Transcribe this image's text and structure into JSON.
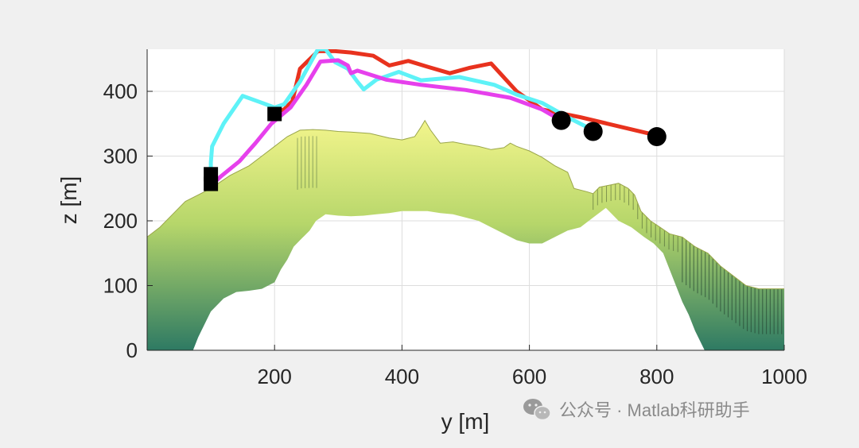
{
  "chart_data": {
    "type": "line",
    "xlabel": "y [m]",
    "ylabel": "z [m]",
    "xlim": [
      0,
      1000
    ],
    "ylim": [
      0,
      465
    ],
    "x_ticks": [
      200,
      400,
      600,
      800,
      1000
    ],
    "y_ticks": [
      0,
      100,
      200,
      300,
      400
    ],
    "grid": true,
    "colors": {
      "figure_bg": "#f0f0f0",
      "axes_bg": "#ffffff",
      "grid": "#dddddd",
      "red": "#e8321e",
      "cyan": "#5ef2f7",
      "magenta": "#e640ec",
      "markers": "#000000",
      "terrain_top": "#f3f58c",
      "terrain_mid": "#b6d66a",
      "terrain_bottom": "#2e7a63"
    },
    "series": [
      {
        "color": "red",
        "points": [
          [
            200,
            368
          ],
          [
            215,
            372
          ],
          [
            228,
            385
          ],
          [
            240,
            435
          ],
          [
            268,
            462
          ],
          [
            295,
            462
          ],
          [
            320,
            460
          ],
          [
            355,
            455
          ],
          [
            380,
            440
          ],
          [
            410,
            447
          ],
          [
            440,
            438
          ],
          [
            475,
            428
          ],
          [
            505,
            436
          ],
          [
            540,
            443
          ],
          [
            580,
            400
          ],
          [
            620,
            372
          ],
          [
            680,
            360
          ],
          [
            800,
            332
          ]
        ]
      },
      {
        "color": "cyan",
        "points": [
          [
            100,
            270
          ],
          [
            100,
            290
          ],
          [
            102,
            315
          ],
          [
            120,
            350
          ],
          [
            150,
            393
          ],
          [
            178,
            383
          ],
          [
            200,
            375
          ],
          [
            215,
            380
          ],
          [
            240,
            415
          ],
          [
            268,
            465
          ],
          [
            280,
            465
          ],
          [
            295,
            445
          ],
          [
            315,
            435
          ],
          [
            330,
            415
          ],
          [
            340,
            403
          ],
          [
            360,
            418
          ],
          [
            395,
            430
          ],
          [
            430,
            417
          ],
          [
            490,
            422
          ],
          [
            545,
            410
          ],
          [
            580,
            395
          ],
          [
            620,
            382
          ],
          [
            660,
            360
          ],
          [
            700,
            340
          ]
        ]
      },
      {
        "color": "magenta",
        "points": [
          [
            100,
            255
          ],
          [
            115,
            268
          ],
          [
            145,
            292
          ],
          [
            170,
            320
          ],
          [
            195,
            350
          ],
          [
            225,
            375
          ],
          [
            250,
            410
          ],
          [
            272,
            446
          ],
          [
            300,
            448
          ],
          [
            315,
            440
          ],
          [
            320,
            428
          ],
          [
            330,
            432
          ],
          [
            375,
            418
          ],
          [
            430,
            410
          ],
          [
            500,
            402
          ],
          [
            570,
            390
          ],
          [
            620,
            372
          ],
          [
            650,
            355
          ]
        ]
      }
    ],
    "start_markers": [
      [
        100,
        257
      ],
      [
        100,
        272
      ],
      [
        200,
        365
      ]
    ],
    "end_markers": [
      [
        650,
        355
      ],
      [
        700,
        338
      ],
      [
        800,
        330
      ]
    ],
    "terrain": {
      "top_profile": [
        [
          0,
          175
        ],
        [
          20,
          190
        ],
        [
          40,
          210
        ],
        [
          60,
          230
        ],
        [
          80,
          240
        ],
        [
          100,
          250
        ],
        [
          130,
          270
        ],
        [
          160,
          285
        ],
        [
          180,
          300
        ],
        [
          200,
          315
        ],
        [
          220,
          330
        ],
        [
          240,
          340
        ],
        [
          260,
          341
        ],
        [
          280,
          340
        ],
        [
          300,
          338
        ],
        [
          320,
          337
        ],
        [
          350,
          335
        ],
        [
          380,
          328
        ],
        [
          400,
          325
        ],
        [
          420,
          330
        ],
        [
          430,
          345
        ],
        [
          436,
          355
        ],
        [
          445,
          340
        ],
        [
          460,
          320
        ],
        [
          480,
          322
        ],
        [
          500,
          318
        ],
        [
          520,
          315
        ],
        [
          540,
          310
        ],
        [
          560,
          313
        ],
        [
          570,
          320
        ],
        [
          580,
          315
        ],
        [
          600,
          308
        ],
        [
          620,
          298
        ],
        [
          640,
          285
        ],
        [
          660,
          275
        ],
        [
          670,
          250
        ],
        [
          690,
          245
        ],
        [
          700,
          242
        ],
        [
          710,
          252
        ],
        [
          725,
          255
        ],
        [
          740,
          258
        ],
        [
          755,
          250
        ],
        [
          765,
          240
        ],
        [
          775,
          215
        ],
        [
          790,
          200
        ],
        [
          805,
          190
        ],
        [
          820,
          180
        ],
        [
          840,
          175
        ],
        [
          860,
          160
        ],
        [
          880,
          150
        ],
        [
          900,
          130
        ],
        [
          920,
          115
        ],
        [
          940,
          100
        ],
        [
          960,
          95
        ],
        [
          980,
          95
        ],
        [
          1000,
          95
        ]
      ],
      "bottom_profile": [
        [
          1000,
          0
        ],
        [
          950,
          0
        ],
        [
          900,
          0
        ],
        [
          875,
          0
        ],
        [
          860,
          30
        ],
        [
          850,
          55
        ],
        [
          840,
          75
        ],
        [
          830,
          100
        ],
        [
          810,
          150
        ],
        [
          795,
          165
        ],
        [
          780,
          175
        ],
        [
          760,
          190
        ],
        [
          740,
          200
        ],
        [
          720,
          220
        ],
        [
          700,
          205
        ],
        [
          680,
          190
        ],
        [
          660,
          185
        ],
        [
          640,
          175
        ],
        [
          620,
          165
        ],
        [
          600,
          165
        ],
        [
          580,
          170
        ],
        [
          560,
          180
        ],
        [
          540,
          190
        ],
        [
          520,
          200
        ],
        [
          500,
          205
        ],
        [
          480,
          210
        ],
        [
          460,
          212
        ],
        [
          440,
          215
        ],
        [
          420,
          215
        ],
        [
          400,
          215
        ],
        [
          380,
          212
        ],
        [
          360,
          210
        ],
        [
          340,
          208
        ],
        [
          320,
          207
        ],
        [
          300,
          208
        ],
        [
          280,
          210
        ],
        [
          265,
          200
        ],
        [
          255,
          185
        ],
        [
          240,
          170
        ],
        [
          230,
          160
        ],
        [
          220,
          140
        ],
        [
          210,
          125
        ],
        [
          200,
          105
        ],
        [
          180,
          95
        ],
        [
          160,
          92
        ],
        [
          140,
          90
        ],
        [
          120,
          80
        ],
        [
          100,
          60
        ],
        [
          90,
          40
        ],
        [
          80,
          20
        ],
        [
          72,
          0
        ],
        [
          0,
          0
        ]
      ]
    }
  },
  "watermark": {
    "icon": "wechat-icon",
    "text": "公众号 · Matlab科研助手"
  }
}
